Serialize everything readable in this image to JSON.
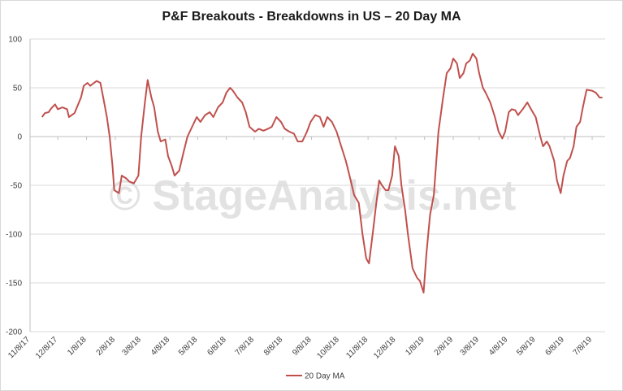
{
  "chart_data": {
    "type": "line",
    "title": "P&F Breakouts - Breakdowns in US – 20 Day MA",
    "xlabel": "",
    "ylabel": "",
    "ylim": [
      -200,
      100
    ],
    "yticks": [
      -200,
      -150,
      -100,
      -50,
      0,
      50,
      100
    ],
    "x_tick_labels": [
      "11/8/17",
      "12/8/17",
      "1/8/18",
      "2/8/18",
      "3/8/18",
      "4/8/18",
      "5/8/18",
      "6/8/18",
      "7/8/18",
      "8/8/18",
      "9/8/18",
      "10/8/18",
      "11/8/18",
      "12/8/18",
      "1/8/19",
      "2/8/19",
      "3/8/19",
      "4/8/19",
      "5/8/19",
      "6/8/19",
      "7/8/19"
    ],
    "x_range": [
      "11/8/17",
      "7/22/19"
    ],
    "grid": true,
    "legend_position": "bottom",
    "watermark": "© StageAnalysis.net",
    "series": [
      {
        "name": "20 Day MA",
        "color": "#c0504d",
        "points": [
          [
            "11/21/17",
            20
          ],
          [
            "11/24/17",
            24
          ],
          [
            "11/28/17",
            25
          ],
          [
            "12/1/17",
            29
          ],
          [
            "12/5/17",
            33
          ],
          [
            "12/8/17",
            28
          ],
          [
            "12/13/17",
            30
          ],
          [
            "12/18/17",
            28
          ],
          [
            "12/20/17",
            20
          ],
          [
            "12/26/17",
            24
          ],
          [
            "1/2/18",
            40
          ],
          [
            "1/5/18",
            52
          ],
          [
            "1/9/18",
            55
          ],
          [
            "1/12/18",
            52
          ],
          [
            "1/16/18",
            55
          ],
          [
            "1/19/18",
            57
          ],
          [
            "1/23/18",
            55
          ],
          [
            "1/26/18",
            40
          ],
          [
            "1/30/18",
            20
          ],
          [
            "2/2/18",
            0
          ],
          [
            "2/5/18",
            -30
          ],
          [
            "2/7/18",
            -55
          ],
          [
            "2/12/18",
            -58
          ],
          [
            "2/15/18",
            -40
          ],
          [
            "2/20/18",
            -43
          ],
          [
            "2/23/18",
            -46
          ],
          [
            "2/28/18",
            -48
          ],
          [
            "3/5/18",
            -40
          ],
          [
            "3/8/18",
            0
          ],
          [
            "3/12/18",
            35
          ],
          [
            "3/15/18",
            58
          ],
          [
            "3/19/18",
            40
          ],
          [
            "3/22/18",
            30
          ],
          [
            "3/26/18",
            5
          ],
          [
            "3/29/18",
            -5
          ],
          [
            "4/3/18",
            -3
          ],
          [
            "4/6/18",
            -20
          ],
          [
            "4/10/18",
            -30
          ],
          [
            "4/13/18",
            -40
          ],
          [
            "4/18/18",
            -35
          ],
          [
            "4/23/18",
            -15
          ],
          [
            "4/27/18",
            0
          ],
          [
            "5/2/18",
            10
          ],
          [
            "5/7/18",
            20
          ],
          [
            "5/11/18",
            15
          ],
          [
            "5/16/18",
            22
          ],
          [
            "5/21/18",
            25
          ],
          [
            "5/25/18",
            20
          ],
          [
            "5/30/18",
            30
          ],
          [
            "6/4/18",
            35
          ],
          [
            "6/8/18",
            45
          ],
          [
            "6/12/18",
            50
          ],
          [
            "6/15/18",
            47
          ],
          [
            "6/20/18",
            40
          ],
          [
            "6/25/18",
            35
          ],
          [
            "6/29/18",
            25
          ],
          [
            "7/3/18",
            10
          ],
          [
            "7/9/18",
            5
          ],
          [
            "7/13/18",
            8
          ],
          [
            "7/18/18",
            6
          ],
          [
            "7/23/18",
            8
          ],
          [
            "7/27/18",
            10
          ],
          [
            "8/1/18",
            20
          ],
          [
            "8/6/18",
            15
          ],
          [
            "8/10/18",
            8
          ],
          [
            "8/15/18",
            5
          ],
          [
            "8/20/18",
            3
          ],
          [
            "8/24/18",
            -5
          ],
          [
            "8/29/18",
            -5
          ],
          [
            "9/3/18",
            5
          ],
          [
            "9/7/18",
            15
          ],
          [
            "9/12/18",
            22
          ],
          [
            "9/17/18",
            20
          ],
          [
            "9/21/18",
            10
          ],
          [
            "9/25/18",
            20
          ],
          [
            "9/30/18",
            15
          ],
          [
            "10/5/18",
            5
          ],
          [
            "10/10/18",
            -10
          ],
          [
            "10/15/18",
            -25
          ],
          [
            "10/19/18",
            -40
          ],
          [
            "10/24/18",
            -60
          ],
          [
            "10/29/18",
            -68
          ],
          [
            "11/2/18",
            -100
          ],
          [
            "11/6/18",
            -125
          ],
          [
            "11/9/18",
            -130
          ],
          [
            "11/13/18",
            -100
          ],
          [
            "11/16/18",
            -75
          ],
          [
            "11/20/18",
            -45
          ],
          [
            "11/23/18",
            -50
          ],
          [
            "11/27/18",
            -55
          ],
          [
            "11/30/18",
            -55
          ],
          [
            "12/4/18",
            -40
          ],
          [
            "12/7/18",
            -10
          ],
          [
            "12/11/18",
            -20
          ],
          [
            "12/14/18",
            -50
          ],
          [
            "12/18/18",
            -75
          ],
          [
            "12/21/18",
            -100
          ],
          [
            "12/26/18",
            -135
          ],
          [
            "12/31/18",
            -145
          ],
          [
            "1/3/19",
            -148
          ],
          [
            "1/7/19",
            -160
          ],
          [
            "1/10/19",
            -120
          ],
          [
            "1/14/19",
            -80
          ],
          [
            "1/18/19",
            -60
          ],
          [
            "1/23/19",
            5
          ],
          [
            "1/28/19",
            40
          ],
          [
            "2/1/19",
            65
          ],
          [
            "2/5/19",
            70
          ],
          [
            "2/8/19",
            80
          ],
          [
            "2/12/19",
            75
          ],
          [
            "2/15/19",
            60
          ],
          [
            "2/19/19",
            65
          ],
          [
            "2/22/19",
            75
          ],
          [
            "2/26/19",
            78
          ],
          [
            "3/1/19",
            85
          ],
          [
            "3/5/19",
            80
          ],
          [
            "3/8/19",
            65
          ],
          [
            "3/12/19",
            50
          ],
          [
            "3/15/19",
            45
          ],
          [
            "3/20/19",
            35
          ],
          [
            "3/25/19",
            20
          ],
          [
            "3/29/19",
            5
          ],
          [
            "4/2/19",
            -2
          ],
          [
            "4/5/19",
            5
          ],
          [
            "4/9/19",
            25
          ],
          [
            "4/12/19",
            28
          ],
          [
            "4/16/19",
            27
          ],
          [
            "4/19/19",
            22
          ],
          [
            "4/24/19",
            28
          ],
          [
            "4/29/19",
            35
          ],
          [
            "5/3/19",
            28
          ],
          [
            "5/8/19",
            20
          ],
          [
            "5/13/19",
            0
          ],
          [
            "5/16/19",
            -10
          ],
          [
            "5/20/19",
            -5
          ],
          [
            "5/23/19",
            -10
          ],
          [
            "5/28/19",
            -25
          ],
          [
            "5/31/19",
            -45
          ],
          [
            "6/4/19",
            -58
          ],
          [
            "6/7/19",
            -40
          ],
          [
            "6/11/19",
            -25
          ],
          [
            "6/14/19",
            -22
          ],
          [
            "6/18/19",
            -10
          ],
          [
            "6/21/19",
            10
          ],
          [
            "6/25/19",
            15
          ],
          [
            "6/28/19",
            30
          ],
          [
            "7/2/19",
            48
          ],
          [
            "7/8/19",
            47
          ],
          [
            "7/12/19",
            45
          ],
          [
            "7/16/19",
            40
          ],
          [
            "7/19/19",
            40
          ]
        ]
      }
    ]
  }
}
